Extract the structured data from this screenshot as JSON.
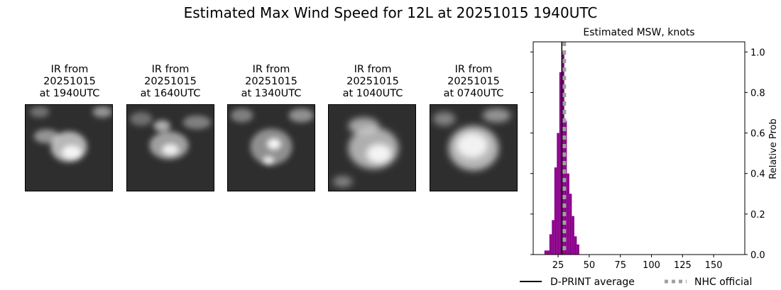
{
  "figure": {
    "title": "Estimated Max Wind Speed for 12L at 20251015 1940UTC"
  },
  "ir_panels": [
    {
      "line1": "IR from",
      "line2": "20251015",
      "line3": "at 1940UTC"
    },
    {
      "line1": "IR from",
      "line2": "20251015",
      "line3": "at 1640UTC"
    },
    {
      "line1": "IR from",
      "line2": "20251015",
      "line3": "at 1340UTC"
    },
    {
      "line1": "IR from",
      "line2": "20251015",
      "line3": "at 1040UTC"
    },
    {
      "line1": "IR from",
      "line2": "20251015",
      "line3": "at 0740UTC"
    }
  ],
  "chart_data": {
    "type": "bar",
    "title": "Estimated MSW, knots",
    "ylabel": "Relative Prob",
    "xlim": [
      5,
      175
    ],
    "ylim": [
      0,
      1.05
    ],
    "xticks": [
      25,
      50,
      75,
      100,
      125,
      150
    ],
    "yticks": [
      0.0,
      0.2,
      0.4,
      0.6,
      0.8,
      1.0
    ],
    "yticklabels": [
      "0.0",
      "0.2",
      "0.4",
      "0.6",
      "0.8",
      "1.0"
    ],
    "bin_width": 2,
    "bins": [
      15,
      17,
      19,
      21,
      23,
      25,
      27,
      29,
      31,
      33,
      35,
      37,
      39,
      41,
      43
    ],
    "values": [
      0.02,
      0.02,
      0.1,
      0.17,
      0.43,
      0.6,
      0.9,
      1.0,
      0.66,
      0.4,
      0.3,
      0.19,
      0.09,
      0.05,
      0.0
    ],
    "bar_color": "#8b008b",
    "dprint_average": 28,
    "nhc_official": 30,
    "legend": [
      {
        "label": "D-PRINT average",
        "style": "solid",
        "color": "#000000"
      },
      {
        "label": "NHC official",
        "style": "dotted",
        "color": "#a0a0a0"
      }
    ],
    "legend_position": "bottom"
  }
}
